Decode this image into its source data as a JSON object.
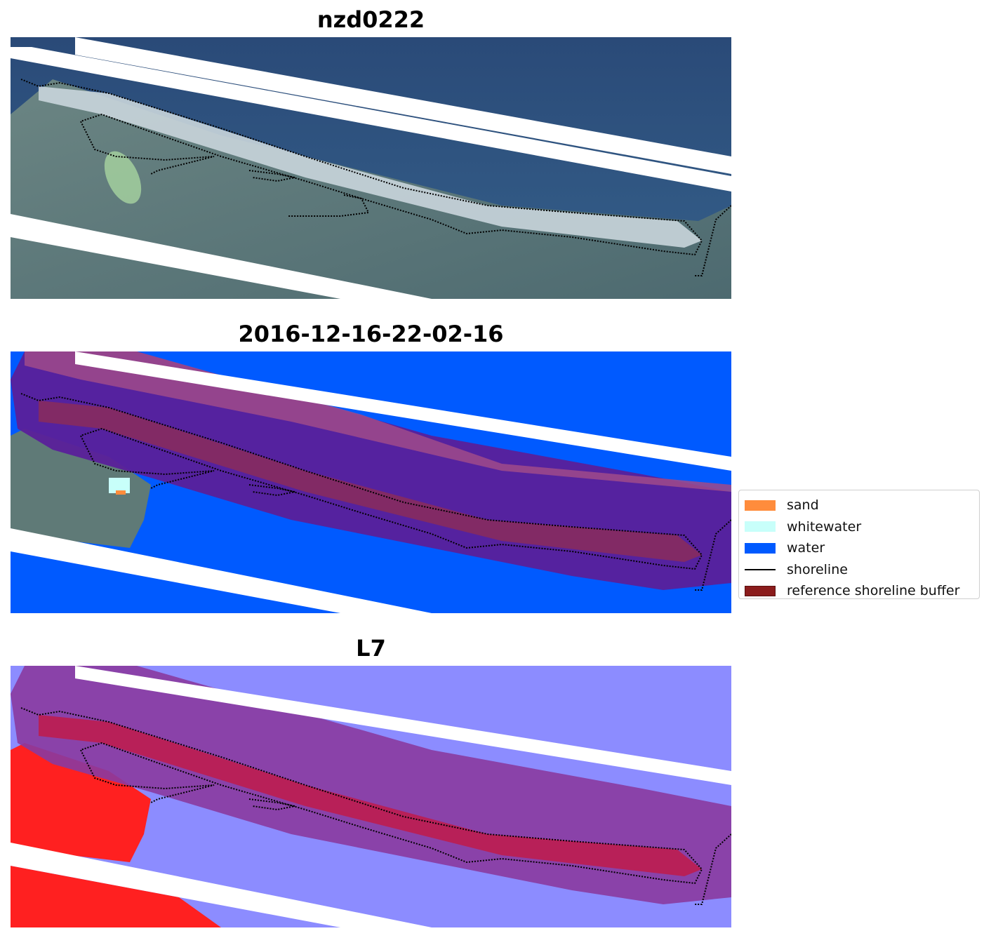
{
  "panels": [
    {
      "title": "nzd0222",
      "kind": "rgb"
    },
    {
      "title": "2016-12-16-22-02-16",
      "kind": "classified"
    },
    {
      "title": "L7",
      "kind": "index"
    }
  ],
  "legend": {
    "items": [
      {
        "label": "sand",
        "color": "#ff8c3c",
        "shape": "patch"
      },
      {
        "label": "whitewater",
        "color": "#c8fffa",
        "shape": "patch"
      },
      {
        "label": "water",
        "color": "#005aff",
        "shape": "patch"
      },
      {
        "label": "shoreline",
        "color": "#000000",
        "shape": "line"
      },
      {
        "label": "reference shoreline buffer",
        "color": "#8b1c1c",
        "shape": "patch"
      }
    ]
  },
  "colors": {
    "ocean": "#2e4f7a",
    "land": "#5f7a77",
    "beach": "#d9e2e6",
    "water_class": "#005aff",
    "buffer_overlay": "#5a209a",
    "buffer_inner": "#8b2c5a",
    "index_low": "#ff1a1a",
    "index_high": "#7d7dff"
  }
}
